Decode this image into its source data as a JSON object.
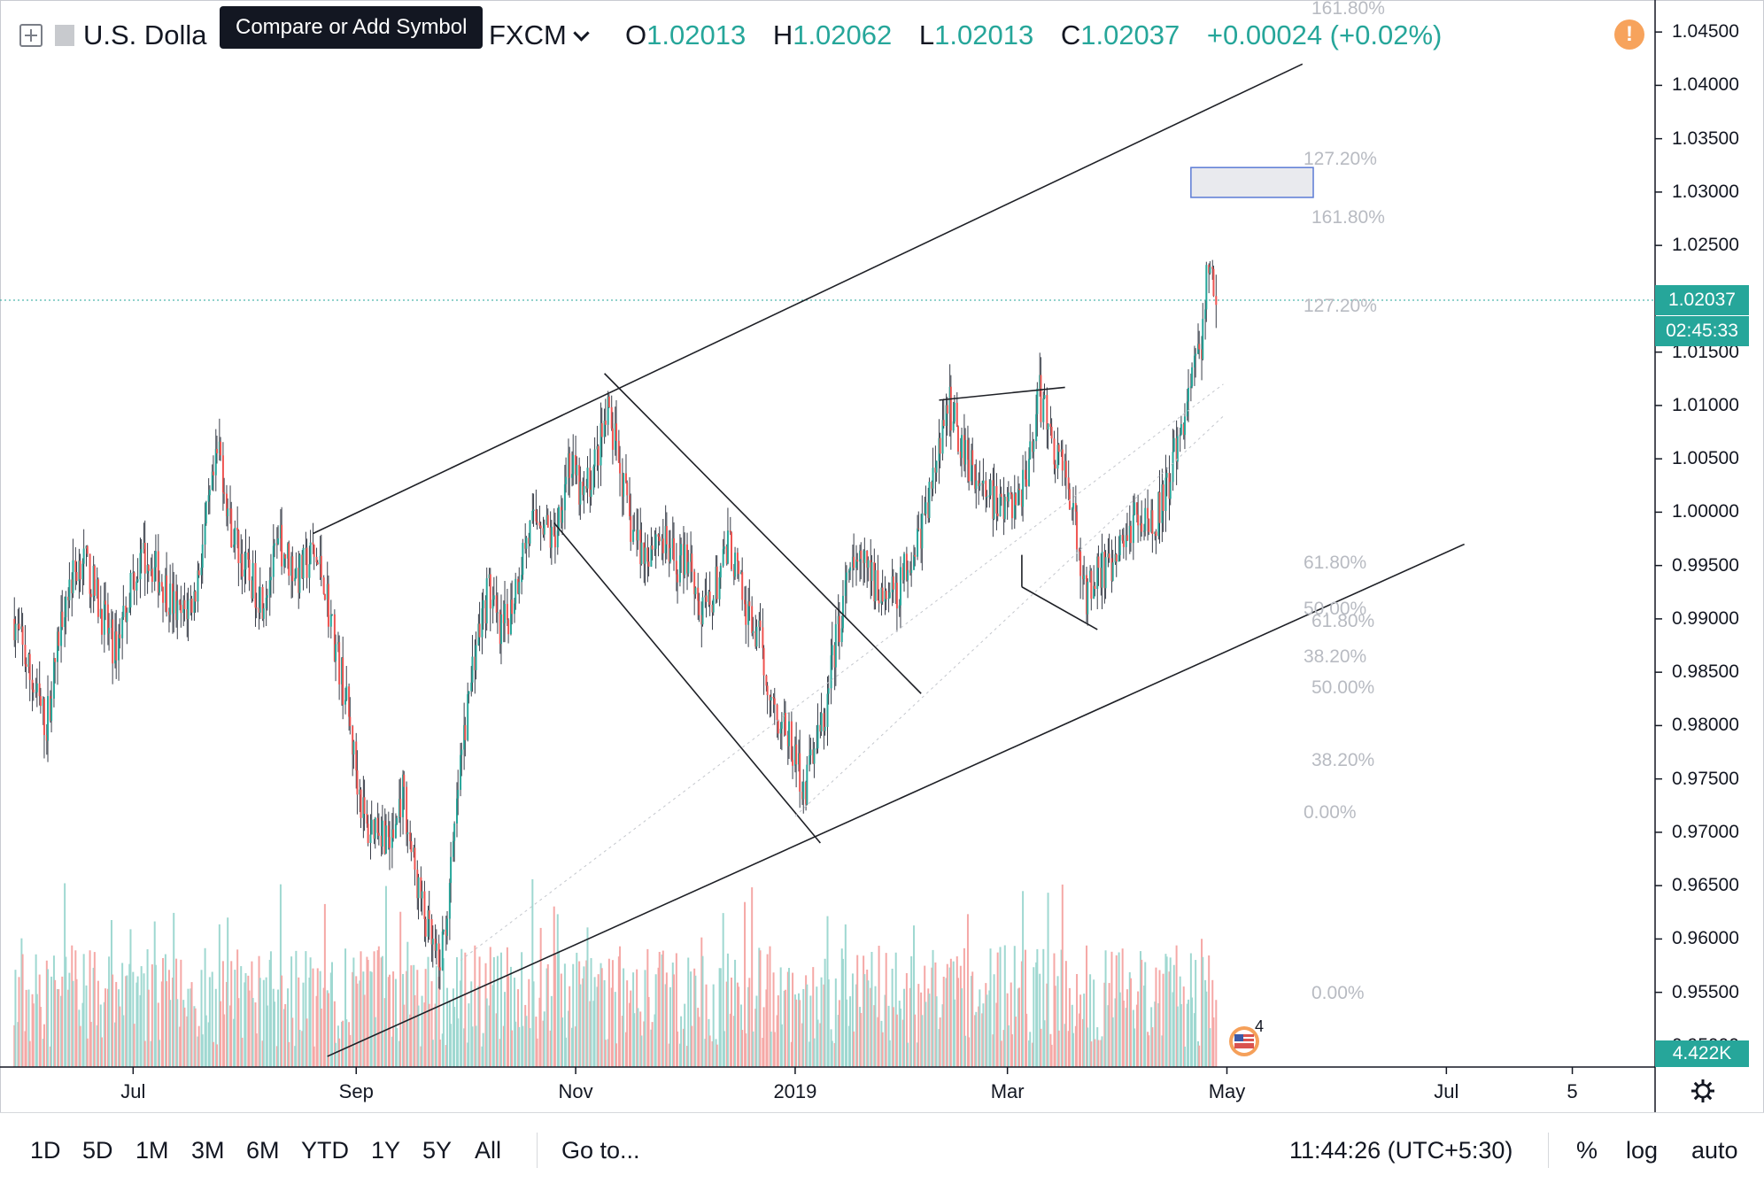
{
  "header": {
    "symbol": "U.S. Dolla",
    "tooltip": "Compare or Add Symbol",
    "exchange": "FXCM",
    "ohlc": {
      "o_label": "O",
      "o": "1.02013",
      "h_label": "H",
      "h": "1.02062",
      "l_label": "L",
      "l": "1.02013",
      "c_label": "C",
      "c": "1.02037",
      "change": "+0.00024 (+0.02%)"
    },
    "alert_icon": "!"
  },
  "price_badge": {
    "price": "1.02037",
    "countdown": "02:45:33"
  },
  "volume_badge": "4.422K",
  "event_count": "4",
  "toolbar": {
    "ranges": [
      "1D",
      "5D",
      "1M",
      "3M",
      "6M",
      "YTD",
      "1Y",
      "5Y",
      "All"
    ],
    "goto": "Go to...",
    "clock": "11:44:26 (UTC+5:30)",
    "percent": "%",
    "log": "log",
    "auto": "auto"
  },
  "colors": {
    "up": "#26a69a",
    "down": "#ef5350",
    "accent": "#26a69a",
    "vol_up": "#9fd8d1",
    "vol_down": "#f5a8a6"
  },
  "chart_data": {
    "type": "candlestick",
    "y_ticks": [
      "1.04500",
      "1.04000",
      "1.03500",
      "1.03000",
      "1.02500",
      "1.02000",
      "1.01500",
      "1.01000",
      "1.00500",
      "1.00000",
      "0.99500",
      "0.99000",
      "0.98500",
      "0.98000",
      "0.97500",
      "0.97000",
      "0.96500",
      "0.96000",
      "0.95500",
      "0.95000"
    ],
    "x_ticks": [
      "Jul",
      "Sep",
      "Nov",
      "2019",
      "Mar",
      "May",
      "Jul",
      "5"
    ],
    "ylim": [
      0.948,
      1.048
    ],
    "xlim": [
      "2018-05-25",
      "2019-08-28"
    ],
    "price_path": [
      [
        "2018-05-29",
        0.99
      ],
      [
        "2018-06-03",
        0.984
      ],
      [
        "2018-06-07",
        0.98
      ],
      [
        "2018-06-12",
        0.992
      ],
      [
        "2018-06-17",
        0.996
      ],
      [
        "2018-06-22",
        0.991
      ],
      [
        "2018-06-26",
        0.987
      ],
      [
        "2018-07-01",
        0.994
      ],
      [
        "2018-07-05",
        0.996
      ],
      [
        "2018-07-10",
        0.993
      ],
      [
        "2018-07-14",
        0.99
      ],
      [
        "2018-07-18",
        0.992
      ],
      [
        "2018-07-22",
        1.0
      ],
      [
        "2018-07-25",
        1.006
      ],
      [
        "2018-07-28",
        0.999
      ],
      [
        "2018-08-02",
        0.994
      ],
      [
        "2018-08-06",
        0.992
      ],
      [
        "2018-08-11",
        0.997
      ],
      [
        "2018-08-16",
        0.994
      ],
      [
        "2018-08-20",
        0.996
      ],
      [
        "2018-08-23",
        0.994
      ],
      [
        "2018-08-26",
        0.988
      ],
      [
        "2018-08-29",
        0.983
      ],
      [
        "2018-09-01",
        0.976
      ],
      [
        "2018-09-04",
        0.97
      ],
      [
        "2018-09-07",
        0.971
      ],
      [
        "2018-09-11",
        0.969
      ],
      [
        "2018-09-14",
        0.974
      ],
      [
        "2018-09-17",
        0.967
      ],
      [
        "2018-09-20",
        0.962
      ],
      [
        "2018-09-24",
        0.957
      ],
      [
        "2018-09-27",
        0.964
      ],
      [
        "2018-09-30",
        0.976
      ],
      [
        "2018-10-04",
        0.987
      ],
      [
        "2018-10-08",
        0.993
      ],
      [
        "2018-10-11",
        0.988
      ],
      [
        "2018-10-14",
        0.991
      ],
      [
        "2018-10-18",
        0.997
      ],
      [
        "2018-10-22",
        1.0
      ],
      [
        "2018-10-26",
        0.997
      ],
      [
        "2018-10-30",
        1.005
      ],
      [
        "2018-11-03",
        1.001
      ],
      [
        "2018-11-06",
        1.004
      ],
      [
        "2018-11-10",
        1.009
      ],
      [
        "2018-11-13",
        1.005
      ],
      [
        "2018-11-16",
        0.999
      ],
      [
        "2018-11-20",
        0.996
      ],
      [
        "2018-11-24",
        0.998
      ],
      [
        "2018-11-29",
        0.995
      ],
      [
        "2018-12-03",
        0.996
      ],
      [
        "2018-12-06",
        0.99
      ],
      [
        "2018-12-09",
        0.992
      ],
      [
        "2018-12-14",
        0.997
      ],
      [
        "2018-12-18",
        0.991
      ],
      [
        "2018-12-22",
        0.988
      ],
      [
        "2018-12-26",
        0.982
      ],
      [
        "2018-12-30",
        0.979
      ],
      [
        "2019-01-02",
        0.976
      ],
      [
        "2019-01-04",
        0.974
      ],
      [
        "2019-01-06",
        0.978
      ],
      [
        "2019-01-09",
        0.98
      ],
      [
        "2019-01-12",
        0.987
      ],
      [
        "2019-01-16",
        0.994
      ],
      [
        "2019-01-20",
        0.995
      ],
      [
        "2019-01-24",
        0.993
      ],
      [
        "2019-01-29",
        0.992
      ],
      [
        "2019-02-02",
        0.996
      ],
      [
        "2019-02-06",
        0.999
      ],
      [
        "2019-02-10",
        1.006
      ],
      [
        "2019-02-13",
        1.01
      ],
      [
        "2019-02-17",
        1.006
      ],
      [
        "2019-02-21",
        1.003
      ],
      [
        "2019-02-25",
        1.001
      ],
      [
        "2019-03-01",
        1.0
      ],
      [
        "2019-03-05",
        1.002
      ],
      [
        "2019-03-07",
        1.005
      ],
      [
        "2019-03-10",
        1.011
      ],
      [
        "2019-03-14",
        1.006
      ],
      [
        "2019-03-18",
        1.003
      ],
      [
        "2019-03-21",
        0.996
      ],
      [
        "2019-03-23",
        0.992
      ],
      [
        "2019-03-26",
        0.995
      ],
      [
        "2019-03-30",
        0.994
      ],
      [
        "2019-04-03",
        0.998
      ],
      [
        "2019-04-07",
        1.0
      ],
      [
        "2019-04-11",
        0.999
      ],
      [
        "2019-04-15",
        1.003
      ],
      [
        "2019-04-18",
        1.007
      ],
      [
        "2019-04-21",
        1.012
      ],
      [
        "2019-04-24",
        1.016
      ],
      [
        "2019-04-26",
        1.023
      ],
      [
        "2019-04-28",
        1.0204
      ]
    ],
    "volume_ylim": [
      0,
      200
    ],
    "volume_max": 200,
    "drawings": {
      "channel_upper": [
        [
          "2018-08-20",
          0.998
        ],
        [
          "2019-05-22",
          1.042
        ]
      ],
      "channel_lower": [
        [
          "2018-08-24",
          0.949
        ],
        [
          "2019-07-06",
          0.997
        ]
      ],
      "falling_upper": [
        [
          "2018-11-09",
          1.013
        ],
        [
          "2019-02-05",
          0.983
        ]
      ],
      "falling_lower": [
        [
          "2018-10-26",
          0.999
        ],
        [
          "2019-01-08",
          0.969
        ]
      ],
      "top_line": [
        [
          "2019-02-10",
          1.0105
        ],
        [
          "2019-03-17",
          1.0117
        ]
      ],
      "wedge_line": [
        [
          "2019-03-05",
          0.993
        ],
        [
          "2019-03-26",
          0.989
        ]
      ],
      "target_box": [
        [
          "2019-04-21",
          1.0323
        ],
        [
          "2019-05-25",
          1.0295
        ]
      ]
    },
    "fib_levels_a": [
      "161.80%",
      "127.20%",
      "61.80%",
      "50.00%",
      "38.20%",
      "0.00%"
    ],
    "fib_levels_b": [
      "161.80%",
      "127.20%",
      "61.80%",
      "50.00%",
      "38.20%",
      "0.00%"
    ]
  }
}
